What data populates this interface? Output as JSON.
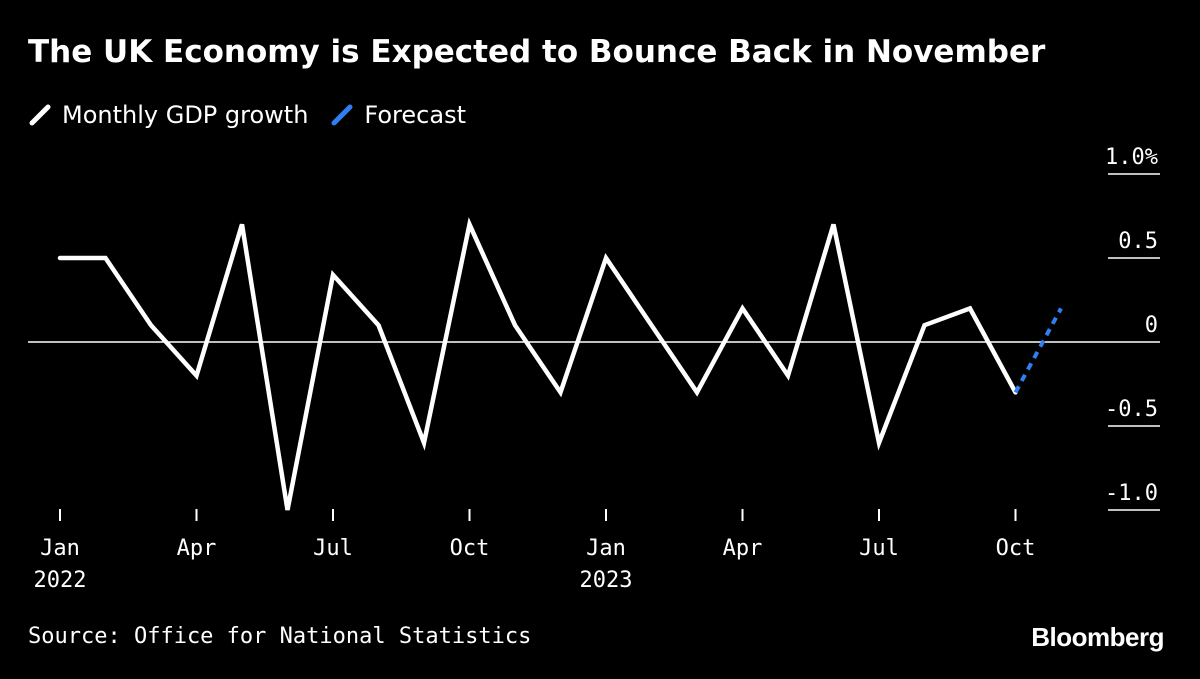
{
  "title": "The UK Economy is Expected to Bounce Back in November",
  "legend": [
    {
      "label": "Monthly GDP growth",
      "color": "#ffffff"
    },
    {
      "label": "Forecast",
      "color": "#2f7ff2"
    }
  ],
  "source": "Source: Office for National Statistics",
  "brand": "Bloomberg",
  "chart_data": {
    "type": "line",
    "title": "The UK Economy is Expected to Bounce Back in November",
    "ylim": [
      -1.0,
      1.0
    ],
    "y_ticks": [
      {
        "value": 1.0,
        "label": "1.0%"
      },
      {
        "value": 0.5,
        "label": "0.5"
      },
      {
        "value": 0,
        "label": "0"
      },
      {
        "value": -0.5,
        "label": "-0.5"
      },
      {
        "value": -1.0,
        "label": "-1.0"
      }
    ],
    "x_ticks": [
      {
        "index": 0,
        "label": "Jan",
        "label2": "2022"
      },
      {
        "index": 3,
        "label": "Apr"
      },
      {
        "index": 6,
        "label": "Jul"
      },
      {
        "index": 9,
        "label": "Oct"
      },
      {
        "index": 12,
        "label": "Jan",
        "label2": "2023"
      },
      {
        "index": 15,
        "label": "Apr"
      },
      {
        "index": 18,
        "label": "Jul"
      },
      {
        "index": 21,
        "label": "Oct"
      }
    ],
    "x_count": 23,
    "grid": false,
    "legend_position": "top-left",
    "series": [
      {
        "name": "Monthly GDP growth",
        "color": "#ffffff",
        "values": [
          0.5,
          0.5,
          0.1,
          -0.2,
          0.7,
          -1.0,
          0.4,
          0.1,
          -0.6,
          0.7,
          0.1,
          -0.3,
          0.5,
          0.1,
          -0.3,
          0.2,
          -0.2,
          0.7,
          -0.6,
          0.1,
          0.2,
          -0.3,
          null
        ]
      },
      {
        "name": "Forecast",
        "color": "#2f7ff2",
        "dashed": true,
        "values": [
          null,
          null,
          null,
          null,
          null,
          null,
          null,
          null,
          null,
          null,
          null,
          null,
          null,
          null,
          null,
          null,
          null,
          null,
          null,
          null,
          null,
          -0.3,
          0.2
        ]
      }
    ]
  }
}
